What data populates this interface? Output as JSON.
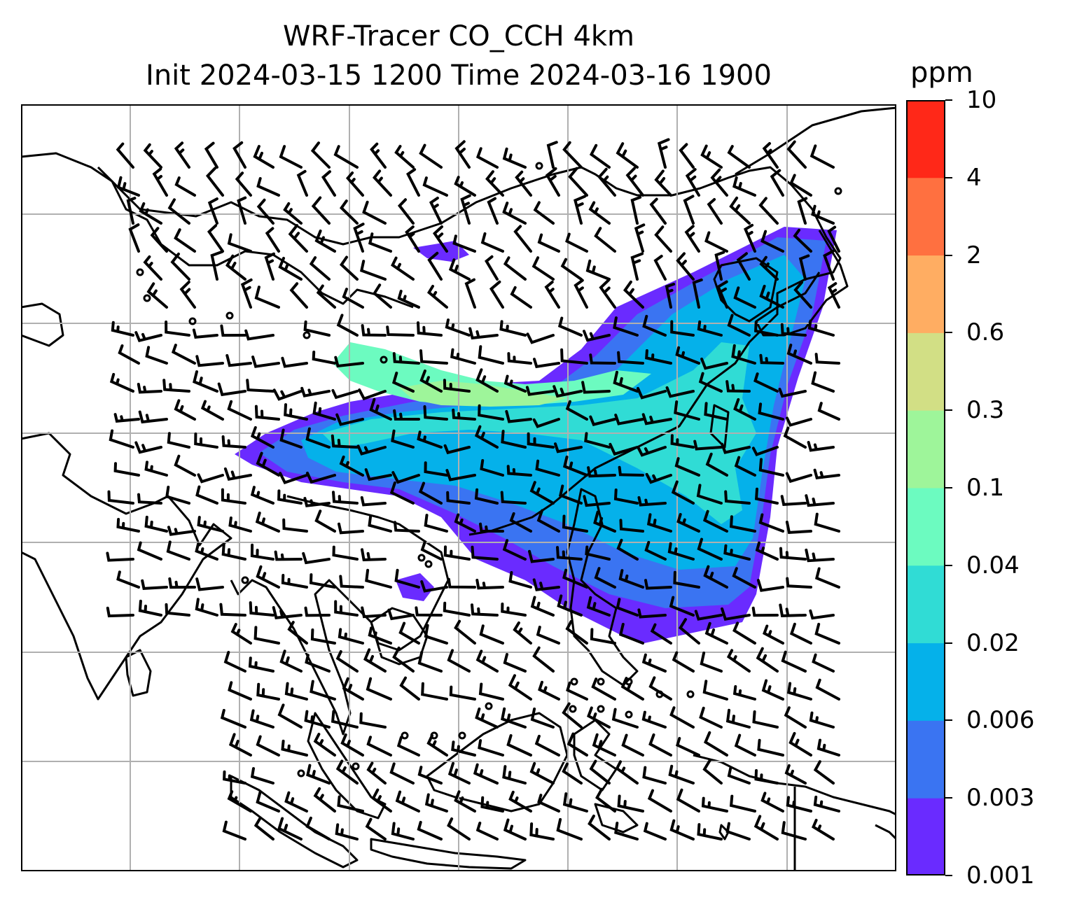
{
  "figure": {
    "title_line1": "WRF-Tracer CO_CCH 4km",
    "title_line2": "Init 2024-03-15 1200 Time 2024-03-16 1900"
  },
  "colorbar": {
    "unit": "ppm",
    "levels": [
      "0.001",
      "0.003",
      "0.006",
      "0.02",
      "0.04",
      "0.1",
      "0.3",
      "0.6",
      "2",
      "4",
      "10"
    ],
    "colors": [
      "#6a2bff",
      "#3a74f2",
      "#05b1ea",
      "#30dcd5",
      "#6cfbc0",
      "#9ef59a",
      "#d2df85",
      "#ffad62",
      "#ff7040",
      "#ff2818"
    ]
  },
  "map": {
    "plume_colors": [
      "#6a2bff",
      "#3a74f2",
      "#05b1ea",
      "#30dcd5",
      "#6cfbc0",
      "#9ef59a"
    ],
    "coastline_color": "#000000",
    "gridline_color": "#b0b0b0",
    "wind_barbs": "black"
  }
}
